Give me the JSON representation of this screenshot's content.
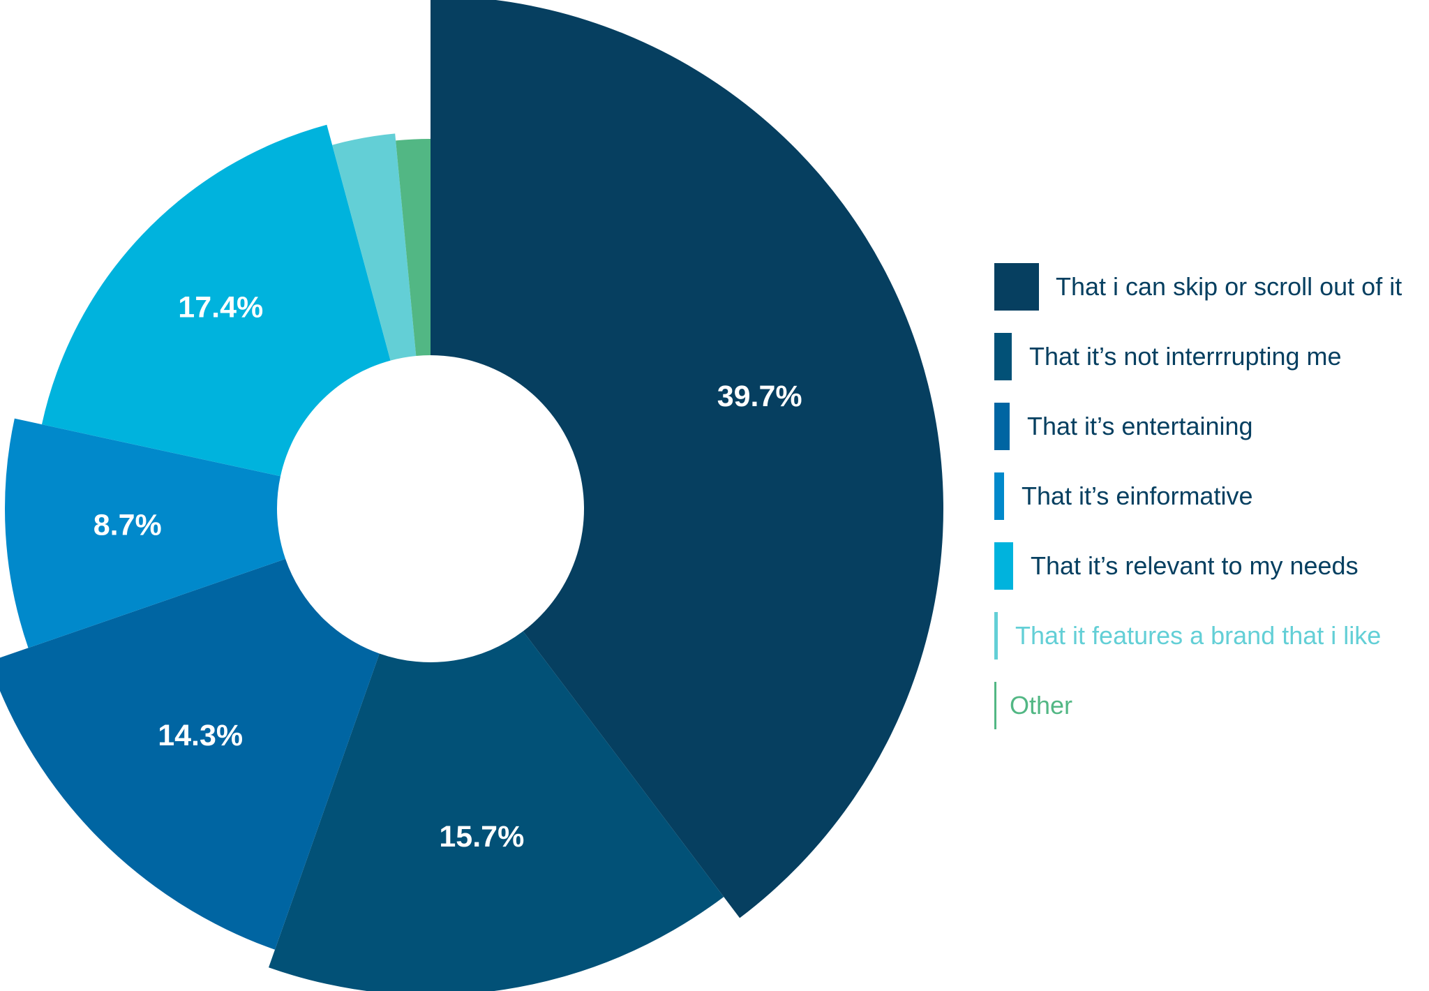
{
  "chart_data": {
    "type": "pie",
    "style": "exploded-donut",
    "slices": [
      {
        "label": "That i can skip or scroll out of it",
        "value": 39.7,
        "display": "39.7%",
        "color": "#063f60"
      },
      {
        "label": "That it’s not interrrupting me",
        "value": 15.7,
        "display": "15.7%",
        "color": "#025177"
      },
      {
        "label": "That it’s entertaining",
        "value": 14.3,
        "display": "14.3%",
        "color": "#0065a2"
      },
      {
        "label": "That it’s einformative",
        "value": 8.7,
        "display": "8.7%",
        "color": "#0189cb"
      },
      {
        "label": "That it’s relevant to my needs",
        "value": 17.4,
        "display": "17.4%",
        "color": "#00b3dd"
      },
      {
        "label": "That it features a brand that i like",
        "value": 2.7,
        "display": "",
        "color": "#63cfd6"
      },
      {
        "label": "Other",
        "value": 1.5,
        "display": "",
        "color": "#52b784"
      }
    ]
  },
  "legend": {
    "items": [
      {
        "label": "That i can skip or scroll out of it",
        "color": "#063f60",
        "text_color": "#063f60"
      },
      {
        "label": "That it’s not interrrupting me",
        "color": "#025177",
        "text_color": "#063f60"
      },
      {
        "label": "That it’s entertaining",
        "color": "#0065a2",
        "text_color": "#063f60"
      },
      {
        "label": "That it’s einformative",
        "color": "#0189cb",
        "text_color": "#063f60"
      },
      {
        "label": "That it’s relevant to my needs",
        "color": "#00b3dd",
        "text_color": "#063f60"
      },
      {
        "label": "That it features a brand that i like",
        "color": "#63cfd6",
        "text_color": "#63cfd6"
      },
      {
        "label": "Other",
        "color": "#52b784",
        "text_color": "#52b784"
      }
    ]
  }
}
